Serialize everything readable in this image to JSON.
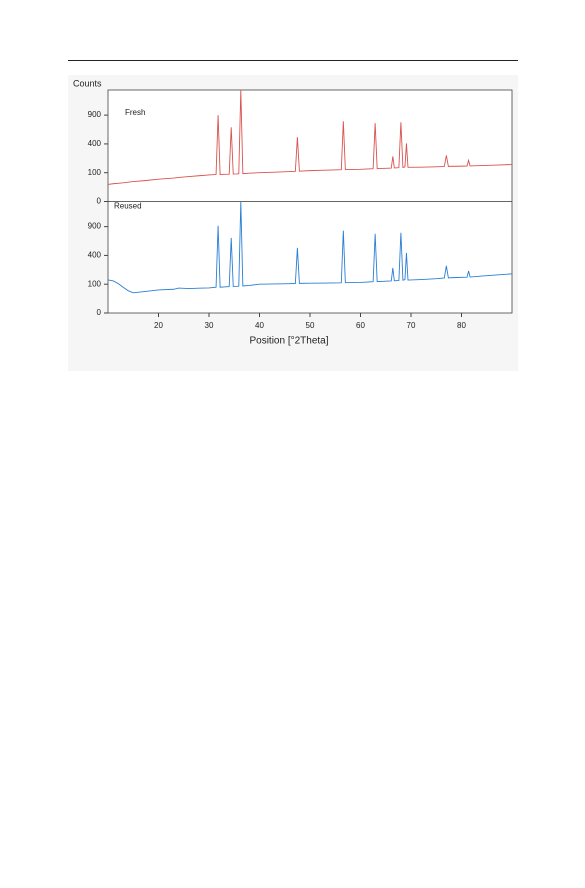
{
  "chart_data": {
    "type": "line",
    "ylabel": "Counts",
    "xlabel": "Position [°2Theta]",
    "yscale": "sqrt",
    "panels": "stacked",
    "xlim": [
      10,
      90
    ],
    "xticks": [
      20,
      30,
      40,
      50,
      60,
      70,
      80
    ],
    "ylim": [
      0,
      1500
    ],
    "yticks": [
      0,
      100,
      400,
      900
    ],
    "x": [
      10,
      11,
      12,
      13,
      14,
      15,
      17,
      20,
      23,
      24,
      26,
      28,
      30,
      31.4,
      31.8,
      32.2,
      33,
      34.0,
      34.4,
      34.8,
      35.5,
      35.9,
      36.3,
      36.7,
      38,
      40,
      43,
      46,
      47.1,
      47.5,
      47.9,
      50,
      53,
      56.2,
      56.6,
      57.0,
      60,
      62.5,
      62.9,
      63.3,
      65,
      66.1,
      66.4,
      66.7,
      67.6,
      68.0,
      68.4,
      68.8,
      69.1,
      69.4,
      72,
      75,
      76.6,
      77.0,
      77.4,
      79,
      81.1,
      81.4,
      81.7,
      84,
      87,
      90
    ],
    "series": [
      {
        "name": "Fresh",
        "color": "#d9534f",
        "values": [
          35,
          38,
          40,
          42,
          45,
          48,
          52,
          60,
          66,
          70,
          75,
          80,
          85,
          88,
          900,
          88,
          89,
          90,
          665,
          91,
          92,
          93,
          1500,
          94,
          97,
          100,
          104,
          108,
          110,
          500,
          111,
          115,
          118,
          122,
          777,
          123,
          125,
          130,
          740,
          131,
          133,
          135,
          245,
          136,
          138,
          757,
          139,
          145,
          408,
          141,
          142,
          145,
          148,
          256,
          149,
          150,
          152,
          204,
          153,
          156,
          160,
          165
        ]
      },
      {
        "name": "Reused",
        "color": "#2a7fd4",
        "values": [
          132,
          125,
          105,
          80,
          60,
          49,
          55,
          64,
          68,
          75,
          72,
          74,
          76,
          80,
          918,
          80,
          82,
          84,
          681,
          85,
          86,
          87,
          1500,
          88,
          92,
          100,
          102,
          104,
          105,
          512,
          106,
          107,
          108,
          110,
          818,
          111,
          113,
          118,
          757,
          119,
          122,
          124,
          245,
          125,
          128,
          777,
          129,
          135,
          436,
          131,
          135,
          142,
          148,
          268,
          149,
          152,
          155,
          213,
          156,
          165,
          175,
          185
        ]
      }
    ]
  }
}
